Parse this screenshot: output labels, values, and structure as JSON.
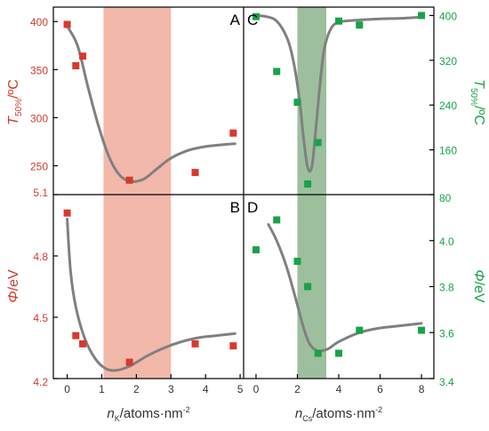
{
  "colors": {
    "left_axis": "#d23a2a",
    "right_axis": "#19a24a",
    "red_marker": "#d9392b",
    "green_marker": "#19a24a",
    "red_band": "#f2b8aa",
    "green_band": "#9dbf9d",
    "fit_curve": "#808080",
    "frame": "#000000"
  },
  "chart_data": [
    {
      "panel": "A",
      "type": "scatter",
      "panel_label": "A",
      "ylabel_main": "T",
      "ylabel_sub": "50%",
      "ylabel_unit": "/ºC",
      "xlim": [
        -0.4,
        5.1
      ],
      "ylim": [
        220,
        415
      ],
      "yticks": [
        250,
        300,
        350,
        400
      ],
      "band": [
        1.05,
        3.0
      ],
      "points": [
        {
          "x": 0.0,
          "y": 397
        },
        {
          "x": 0.25,
          "y": 354
        },
        {
          "x": 0.45,
          "y": 364
        },
        {
          "x": 1.8,
          "y": 235
        },
        {
          "x": 3.7,
          "y": 243
        },
        {
          "x": 4.8,
          "y": 284
        }
      ],
      "fit": [
        [
          0.0,
          395
        ],
        [
          0.3,
          375
        ],
        [
          0.6,
          332
        ],
        [
          0.9,
          292
        ],
        [
          1.2,
          260
        ],
        [
          1.5,
          241
        ],
        [
          1.8,
          234
        ],
        [
          2.2,
          236
        ],
        [
          2.6,
          247
        ],
        [
          3.0,
          258
        ],
        [
          3.5,
          266
        ],
        [
          4.0,
          270
        ],
        [
          4.5,
          272
        ],
        [
          4.85,
          273
        ]
      ]
    },
    {
      "panel": "B",
      "type": "scatter",
      "panel_label": "B",
      "ylabel_main": "Φ",
      "ylabel_unit": "/eV",
      "xlabel_main": "n",
      "xlabel_sub": "K",
      "xlabel_unit": "/atoms·nm",
      "xlabel_sup": "-2",
      "xlim": [
        -0.4,
        5.1
      ],
      "ylim": [
        4.2,
        5.1
      ],
      "yticks": [
        "4.2",
        "4.5",
        "4.8",
        "5.1"
      ],
      "xticks": [
        "0",
        "1",
        "2",
        "3",
        "4",
        "5"
      ],
      "band": [
        1.05,
        3.0
      ],
      "points": [
        {
          "x": 0.0,
          "y": 5.01
        },
        {
          "x": 0.25,
          "y": 4.41
        },
        {
          "x": 0.45,
          "y": 4.37
        },
        {
          "x": 1.8,
          "y": 4.28
        },
        {
          "x": 3.7,
          "y": 4.37
        },
        {
          "x": 4.8,
          "y": 4.36
        }
      ],
      "fit": [
        [
          0.0,
          4.98
        ],
        [
          0.1,
          4.72
        ],
        [
          0.25,
          4.55
        ],
        [
          0.5,
          4.4
        ],
        [
          0.8,
          4.3
        ],
        [
          1.1,
          4.25
        ],
        [
          1.4,
          4.24
        ],
        [
          1.8,
          4.26
        ],
        [
          2.3,
          4.31
        ],
        [
          2.8,
          4.35
        ],
        [
          3.3,
          4.38
        ],
        [
          3.8,
          4.4
        ],
        [
          4.3,
          4.41
        ],
        [
          4.85,
          4.42
        ]
      ]
    },
    {
      "panel": "C",
      "type": "scatter",
      "panel_label": "C",
      "ylabel_main": "T",
      "ylabel_sub": "50%",
      "ylabel_unit": "/ºC",
      "xlim": [
        -0.6,
        8.6
      ],
      "ylim": [
        80,
        415
      ],
      "yticks": [
        80,
        160,
        240,
        320,
        400
      ],
      "band": [
        2.0,
        3.4
      ],
      "points": [
        {
          "x": 0.0,
          "y": 398
        },
        {
          "x": 1.0,
          "y": 300
        },
        {
          "x": 2.0,
          "y": 245
        },
        {
          "x": 2.5,
          "y": 99
        },
        {
          "x": 3.0,
          "y": 173
        },
        {
          "x": 4.0,
          "y": 390
        },
        {
          "x": 5.0,
          "y": 383
        },
        {
          "x": 8.0,
          "y": 400
        }
      ],
      "fit": [
        [
          0.0,
          400
        ],
        [
          0.5,
          398
        ],
        [
          1.0,
          390
        ],
        [
          1.5,
          360
        ],
        [
          1.8,
          320
        ],
        [
          2.1,
          250
        ],
        [
          2.3,
          180
        ],
        [
          2.5,
          128
        ],
        [
          2.7,
          130
        ],
        [
          2.9,
          200
        ],
        [
          3.1,
          280
        ],
        [
          3.3,
          340
        ],
        [
          3.6,
          375
        ],
        [
          4.0,
          388
        ],
        [
          5.0,
          392
        ],
        [
          6.0,
          394
        ],
        [
          7.0,
          395
        ],
        [
          8.0,
          397
        ]
      ]
    },
    {
      "panel": "D",
      "type": "scatter",
      "panel_label": "D",
      "ylabel_main": "Φ",
      "ylabel_unit": "/eV",
      "xlabel_main": "n",
      "xlabel_sub": "Cs",
      "xlabel_unit": "/atoms·nm",
      "xlabel_sup": "-2",
      "xlim": [
        -0.6,
        8.6
      ],
      "ylim": [
        3.4,
        4.2
      ],
      "yticks": [
        "3.4",
        "3.6",
        "3.8",
        "4.0"
      ],
      "xticks": [
        "0",
        "2",
        "4",
        "6",
        "8"
      ],
      "band": [
        2.0,
        3.4
      ],
      "points": [
        {
          "x": 0.0,
          "y": 3.96
        },
        {
          "x": 1.0,
          "y": 4.09
        },
        {
          "x": 2.0,
          "y": 3.91
        },
        {
          "x": 2.5,
          "y": 3.8
        },
        {
          "x": 3.0,
          "y": 3.51
        },
        {
          "x": 4.0,
          "y": 3.51
        },
        {
          "x": 5.0,
          "y": 3.61
        },
        {
          "x": 8.0,
          "y": 3.61
        }
      ],
      "fit": [
        [
          0.6,
          4.07
        ],
        [
          1.0,
          4.0
        ],
        [
          1.5,
          3.88
        ],
        [
          2.0,
          3.72
        ],
        [
          2.3,
          3.62
        ],
        [
          2.6,
          3.55
        ],
        [
          3.0,
          3.52
        ],
        [
          3.5,
          3.53
        ],
        [
          4.0,
          3.56
        ],
        [
          5.0,
          3.6
        ],
        [
          6.0,
          3.62
        ],
        [
          7.0,
          3.63
        ],
        [
          8.0,
          3.64
        ]
      ]
    }
  ]
}
